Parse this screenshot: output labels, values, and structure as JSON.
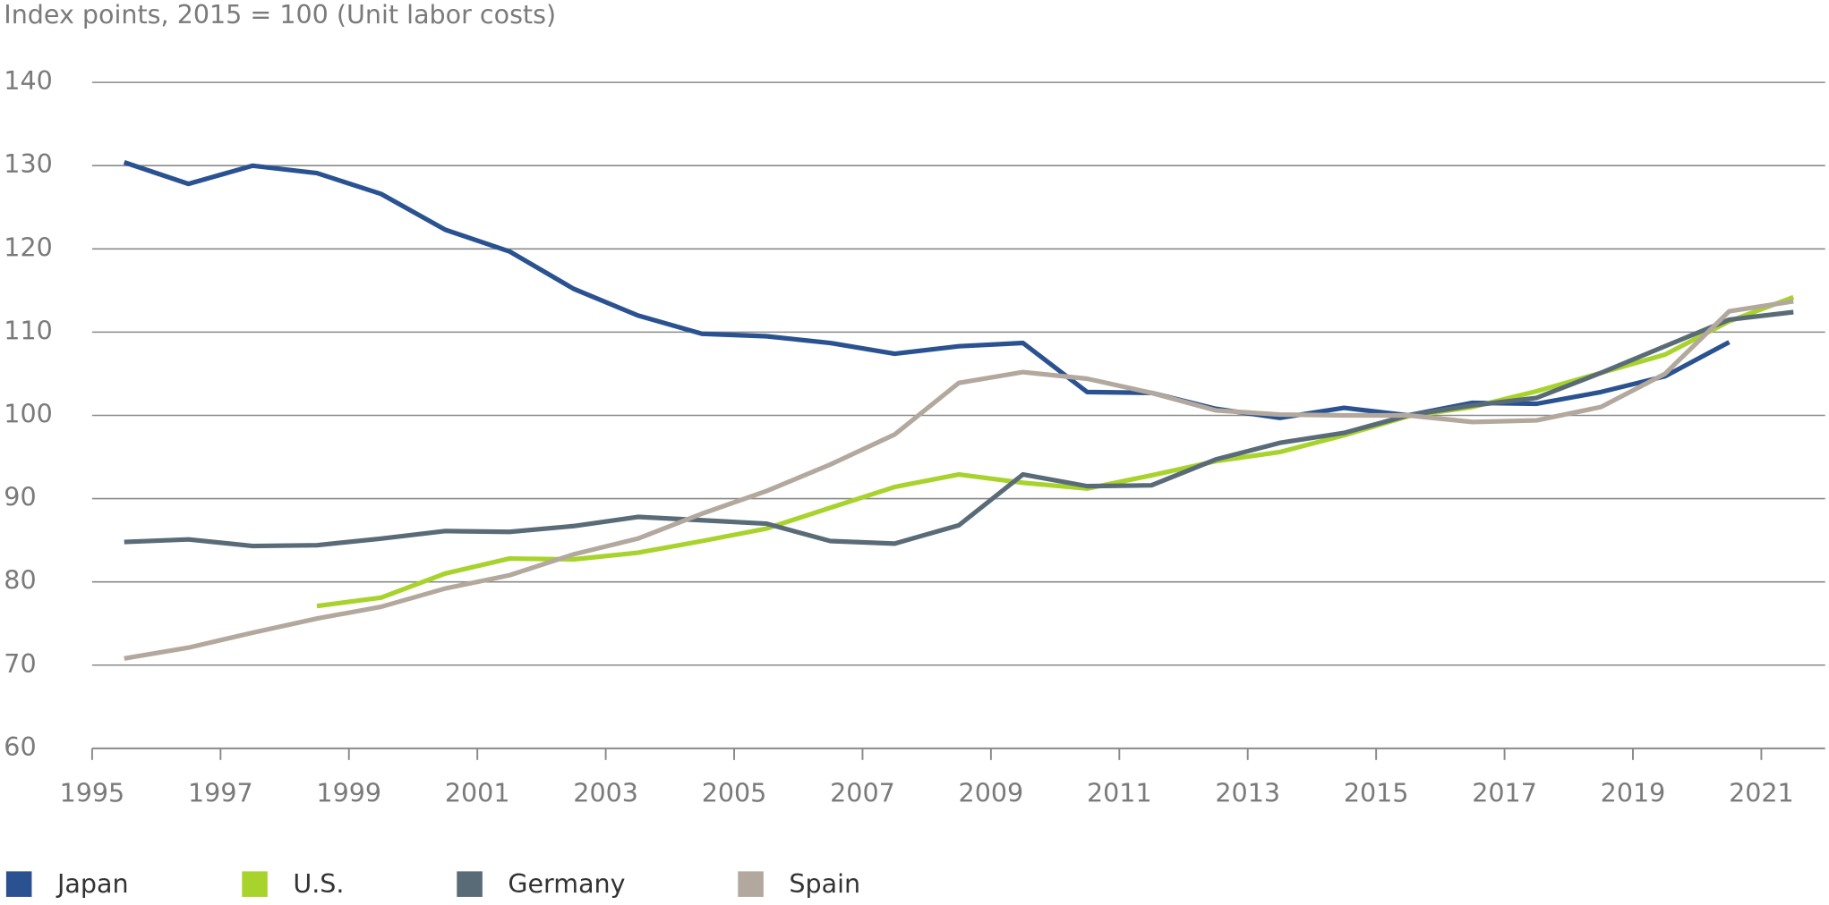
{
  "chart_data": {
    "type": "line",
    "title": "Index points, 2015 = 100 (Unit labor costs)",
    "x": [
      1995,
      1996,
      1997,
      1998,
      1999,
      2000,
      2001,
      2002,
      2003,
      2004,
      2005,
      2006,
      2007,
      2008,
      2009,
      2010,
      2011,
      2012,
      2013,
      2014,
      2015,
      2016,
      2017,
      2018,
      2019,
      2020,
      2021
    ],
    "series": [
      {
        "name": "Japan",
        "color": "#2a5291",
        "values": [
          130.4,
          127.8,
          130.0,
          129.1,
          126.6,
          122.3,
          119.7,
          115.2,
          112.0,
          109.8,
          109.5,
          108.7,
          107.4,
          108.3,
          108.7,
          102.8,
          102.7,
          100.8,
          99.7,
          100.9,
          100.0,
          101.5,
          101.4,
          102.8,
          104.7,
          108.8,
          null
        ]
      },
      {
        "name": "U.S.",
        "color": "#a8d32c",
        "values": [
          null,
          null,
          null,
          77.1,
          78.1,
          81.0,
          82.8,
          82.7,
          83.5,
          84.9,
          86.4,
          88.9,
          91.4,
          92.9,
          91.9,
          91.2,
          92.8,
          94.5,
          95.6,
          97.6,
          99.9,
          101.0,
          102.9,
          105.1,
          107.3,
          111.3,
          114.2
        ]
      },
      {
        "name": "Germany",
        "color": "#5a6b78",
        "values": [
          84.8,
          85.1,
          84.3,
          84.4,
          85.2,
          86.1,
          86.0,
          86.7,
          87.8,
          87.4,
          87.0,
          84.9,
          84.6,
          86.8,
          92.9,
          91.5,
          91.6,
          94.7,
          96.7,
          97.9,
          100.0,
          101.2,
          102.1,
          105.1,
          108.3,
          111.5,
          112.4
        ]
      },
      {
        "name": "Spain",
        "color": "#b3a89d",
        "values": [
          70.8,
          72.1,
          73.9,
          75.6,
          77.0,
          79.2,
          80.8,
          83.3,
          85.2,
          88.2,
          90.9,
          94.1,
          97.7,
          103.9,
          105.2,
          104.4,
          102.7,
          100.6,
          100.1,
          100.0,
          100.0,
          99.2,
          99.4,
          101.0,
          105.0,
          112.5,
          113.7
        ]
      }
    ],
    "xlim": [
      1995,
      2021.5
    ],
    "xticks": [
      1995,
      1997,
      1999,
      2001,
      2003,
      2005,
      2007,
      2009,
      2011,
      2013,
      2015,
      2017,
      2019,
      2021
    ],
    "ylim": [
      60,
      140
    ],
    "yticks": [
      60,
      70,
      80,
      90,
      100,
      110,
      120,
      130,
      140
    ],
    "grid": true,
    "legend": "bottom"
  }
}
